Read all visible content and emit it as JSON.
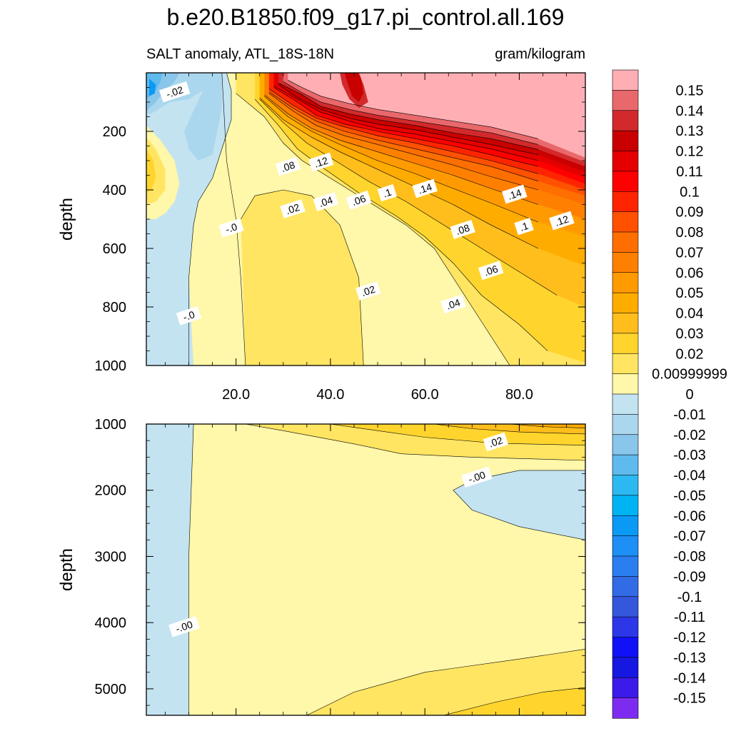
{
  "chart_data": {
    "type": "heatmap",
    "title": "b.e20.B1850.f09_g17.pi_control.all.169",
    "subtitle_left": "SALT anomaly, ATL_18S-18N",
    "subtitle_right": "gram/kilogram",
    "xlabel": "",
    "ylabel": "depth",
    "xlim": [
      1,
      94
    ],
    "x_ticks": [
      "20.0",
      "40.0",
      "60.0",
      "80.0"
    ],
    "panels": [
      {
        "name": "upper",
        "ylim": [
          0,
          1000
        ],
        "y_ticks": [
          "200",
          "400",
          "600",
          "800",
          "1000"
        ],
        "contour_labels": [
          {
            "text": "-.02",
            "x": 7,
            "y": 65
          },
          {
            "text": ".08",
            "x": 31,
            "y": 320
          },
          {
            "text": ".12",
            "x": 38,
            "y": 305
          },
          {
            "text": ".02",
            "x": 32,
            "y": 465
          },
          {
            "text": ".04",
            "x": 39,
            "y": 440
          },
          {
            "text": ".06",
            "x": 46,
            "y": 435
          },
          {
            "text": ".1",
            "x": 52,
            "y": 410
          },
          {
            "text": ".14",
            "x": 60,
            "y": 395
          },
          {
            "text": ".14",
            "x": 79,
            "y": 415
          },
          {
            "text": ".12",
            "x": 89,
            "y": 505
          },
          {
            "text": ".1",
            "x": 81,
            "y": 525
          },
          {
            "text": ".08",
            "x": 68,
            "y": 535
          },
          {
            "text": "-.0",
            "x": 19,
            "y": 530
          },
          {
            "text": ".06",
            "x": 74,
            "y": 675
          },
          {
            "text": ".02",
            "x": 48,
            "y": 745
          },
          {
            "text": ".04",
            "x": 66,
            "y": 790
          },
          {
            "text": "-.0",
            "x": 10,
            "y": 830
          }
        ]
      },
      {
        "name": "lower",
        "ylim": [
          1000,
          5400
        ],
        "y_ticks": [
          "1000",
          "2000",
          "3000",
          "4000",
          "5000"
        ],
        "contour_labels": [
          {
            "text": ".02",
            "x": 75,
            "y": 1270
          },
          {
            "text": "-.00",
            "x": 71,
            "y": 1800
          },
          {
            "text": "-.00",
            "x": 9,
            "y": 4060
          }
        ]
      }
    ],
    "colorbar": {
      "labels": [
        "0.15",
        "0.14",
        "0.13",
        "0.12",
        "0.11",
        "0.1",
        "0.09",
        "0.08",
        "0.07",
        "0.06",
        "0.05",
        "0.04",
        "0.03",
        "0.02",
        "0.00999999",
        "0",
        "-0.01",
        "-0.02",
        "-0.03",
        "-0.04",
        "-0.05",
        "-0.06",
        "-0.07",
        "-0.08",
        "-0.09",
        "-0.1",
        "-0.11",
        "-0.12",
        "-0.13",
        "-0.14",
        "-0.15"
      ],
      "colors": [
        "#FFAFB4",
        "#E9686B",
        "#D22A2C",
        "#C90000",
        "#E50000",
        "#FF0000",
        "#FF2400",
        "#FF5100",
        "#FF6E00",
        "#FF8000",
        "#FF9B00",
        "#FFAC00",
        "#FFBE1C",
        "#FFD52D",
        "#FFE562",
        "#FFF7A9",
        "#C3E3F1",
        "#ABD7EE",
        "#8AC5EA",
        "#5FBAED",
        "#2CB9F1",
        "#00B4F4",
        "#0A9AF6",
        "#1E8FF5",
        "#2A7EF0",
        "#316BE6",
        "#3457DC",
        "#2C37E8",
        "#1111F7",
        "#1617E0",
        "#3C1AE9",
        "#7D2BF0"
      ]
    }
  }
}
